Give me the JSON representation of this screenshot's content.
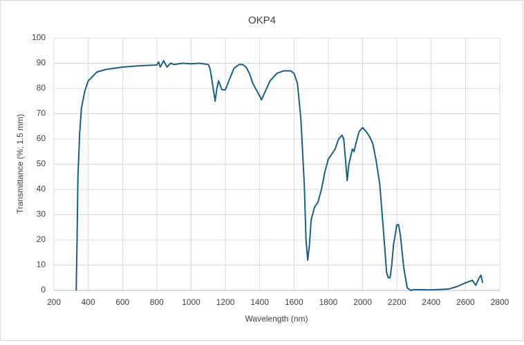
{
  "chart_data": {
    "type": "line",
    "title": "OKP4",
    "x_label": "Wavelength (nm)",
    "y_label": "Transmittance (%; 1.5 mm)",
    "x": [
      330,
      335,
      340,
      350,
      360,
      380,
      400,
      450,
      500,
      600,
      700,
      800,
      810,
      820,
      840,
      860,
      880,
      900,
      950,
      1000,
      1050,
      1100,
      1110,
      1120,
      1140,
      1150,
      1160,
      1180,
      1200,
      1220,
      1250,
      1280,
      1300,
      1320,
      1340,
      1360,
      1380,
      1400,
      1410,
      1420,
      1440,
      1460,
      1500,
      1540,
      1580,
      1600,
      1620,
      1640,
      1660,
      1670,
      1680,
      1690,
      1700,
      1720,
      1740,
      1760,
      1780,
      1800,
      1820,
      1840,
      1860,
      1880,
      1890,
      1900,
      1910,
      1920,
      1940,
      1950,
      1960,
      1980,
      2000,
      2020,
      2040,
      2060,
      2080,
      2100,
      2120,
      2140,
      2150,
      2160,
      2170,
      2180,
      2200,
      2210,
      2220,
      2240,
      2260,
      2280,
      2300,
      2400,
      2500,
      2550,
      2600,
      2640,
      2660,
      2680,
      2690,
      2700
    ],
    "series": [
      {
        "name": "OKP4",
        "color": "#1b5e7e",
        "values": [
          0,
          20,
          45,
          62,
          72,
          79,
          83,
          86.5,
          87.5,
          88.5,
          89,
          89.3,
          90.5,
          88.5,
          91,
          88.5,
          90,
          89.5,
          90,
          89.8,
          90,
          89.5,
          88,
          84,
          75,
          80,
          83,
          79.5,
          79.5,
          83,
          88,
          89.5,
          89.5,
          88.5,
          86,
          82,
          79.5,
          77,
          75.5,
          77,
          80,
          83,
          86,
          87,
          87,
          86,
          82,
          68,
          42,
          20,
          12,
          18,
          28,
          33,
          35,
          40,
          47,
          52,
          54,
          56,
          60,
          61.5,
          60,
          52,
          43.5,
          50,
          56,
          55,
          58,
          63,
          64.5,
          63,
          61,
          58,
          51,
          42,
          25,
          7,
          5,
          5,
          10,
          18,
          26,
          26,
          22,
          9,
          1,
          0,
          0.3,
          0.2,
          0.5,
          1.5,
          3,
          4,
          2,
          5,
          6,
          3
        ]
      }
    ],
    "xlim": [
      200,
      2800
    ],
    "ylim": [
      0,
      100
    ],
    "xticks": [
      200,
      400,
      600,
      800,
      1000,
      1200,
      1400,
      1600,
      1800,
      2000,
      2200,
      2400,
      2600,
      2800
    ],
    "yticks": [
      0,
      10,
      20,
      30,
      40,
      50,
      60,
      70,
      80,
      90,
      100
    ],
    "grid": true
  }
}
